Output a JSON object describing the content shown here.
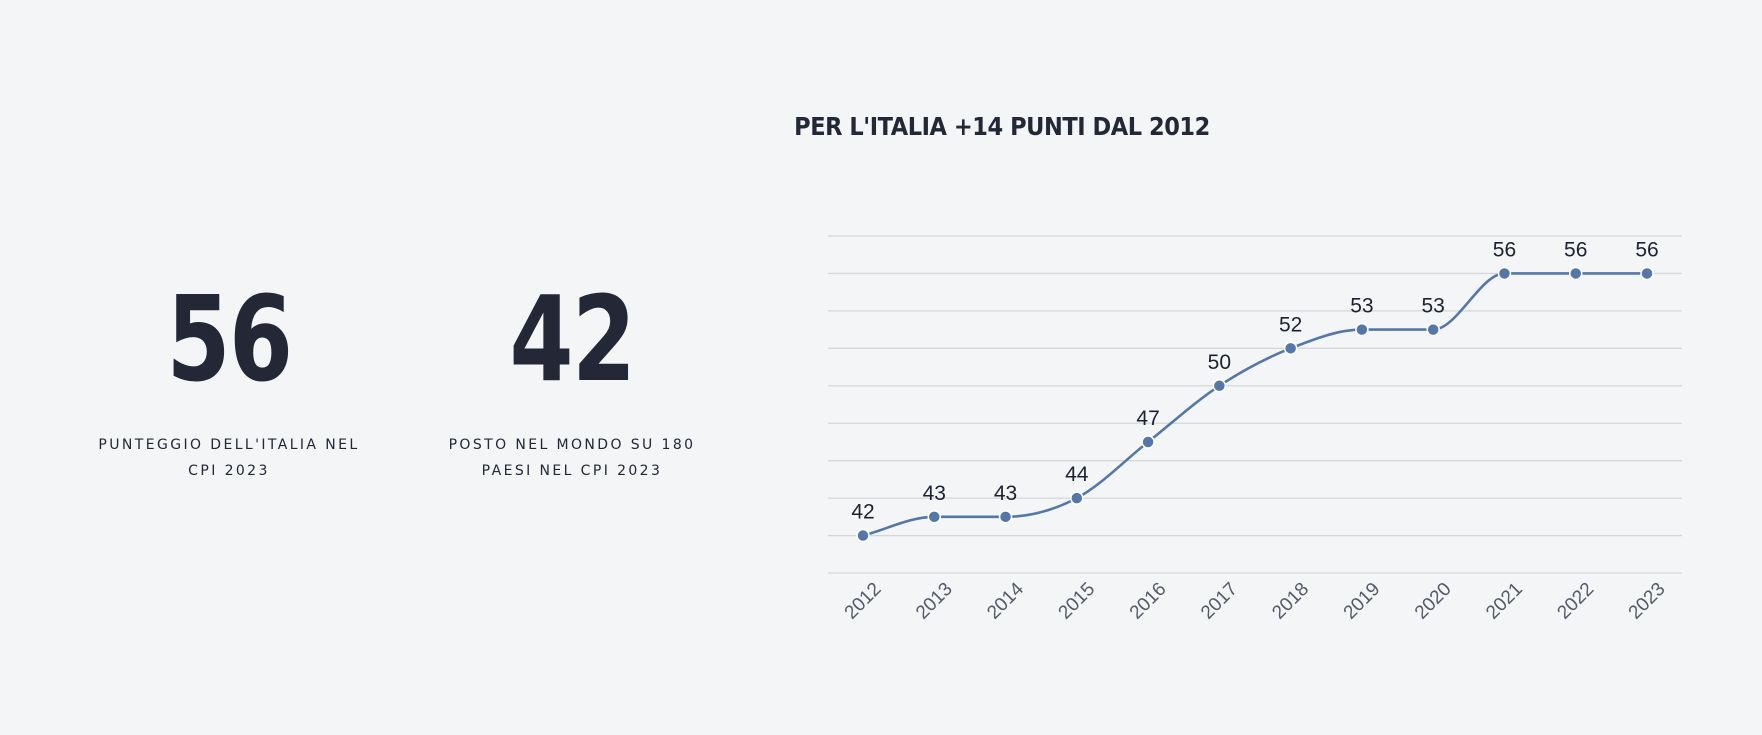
{
  "stats": [
    {
      "value": "56",
      "label": "PUNTEGGIO DELL'ITALIA NEL CPI 2023"
    },
    {
      "value": "42",
      "label": "POSTO NEL MONDO SU 180 PAESI NEL CPI 2023"
    }
  ],
  "colors": {
    "line": "#5477a8",
    "grid": "#d4d7dc",
    "text": "#232736",
    "tick": "#555a66"
  },
  "chart_data": {
    "type": "line",
    "title": "PER L'ITALIA +14 PUNTI DAL 2012",
    "categories": [
      "2012",
      "2013",
      "2014",
      "2015",
      "2016",
      "2017",
      "2018",
      "2019",
      "2020",
      "2021",
      "2022",
      "2023"
    ],
    "values": [
      42,
      43,
      43,
      44,
      47,
      50,
      52,
      53,
      53,
      56,
      56,
      56
    ],
    "ylim": [
      40,
      58
    ],
    "grid": true,
    "data_labels": true,
    "xlabel": "",
    "ylabel": ""
  }
}
